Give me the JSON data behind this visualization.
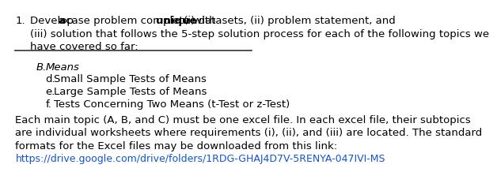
{
  "bg_color": "#ffffff",
  "text_color": "#000000",
  "link_color": "#1155CC",
  "item_number": "1.",
  "line1_normal_1": "Develop ",
  "line1_bold_1": "a",
  "line1_normal_2": " case problem complete with ",
  "line1_bold_2": "unique",
  "line1_normal_3": " (i) datasets, (ii) problem statement, and",
  "line2": "(iii) solution that follows the 5-step solution process for each of the following topics we",
  "line3": "have covered so far:",
  "section_letter": "B.",
  "section_title": "Means",
  "sub_d_label": "d.",
  "sub_d_text": "Small Sample Tests of Means",
  "sub_e_label": "e.",
  "sub_e_text": "Large Sample Tests of Means",
  "sub_f_label": "f.",
  "sub_f_text": "Tests Concerning Two Means (t-Test or z-Test)",
  "para1": "Each main topic (A, B, and C) must be one excel file. In each excel file, their subtopics",
  "para2": "are individual worksheets where requirements (i), (ii), and (iii) are located. The standard",
  "para3": "formats for the Excel files may be downloaded from this link:",
  "link_text": "https://drive.google.com/drive/folders/1RDG-GHAJ4D7V-5RENYA-047IVI-MS",
  "font_size_main": 9.5,
  "lm": 0.03,
  "indent1": 0.09,
  "indent2": 0.115,
  "indent3": 0.152,
  "indent4": 0.185
}
